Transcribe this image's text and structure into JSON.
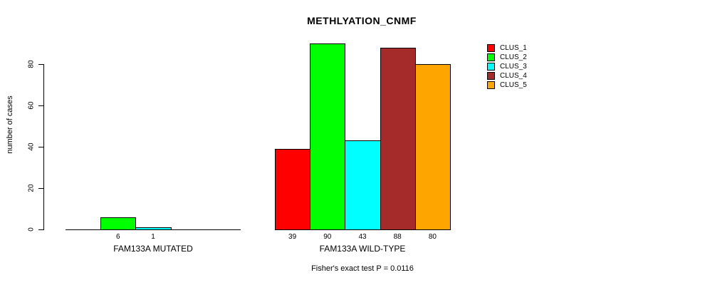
{
  "chart_data": {
    "type": "bar",
    "title": "METHLYATION_CNMF",
    "ylabel": "number of cases",
    "ylim": [
      0,
      90
    ],
    "yticks": [
      0,
      20,
      40,
      60,
      80
    ],
    "grid": false,
    "legend_position": "right",
    "series_names": [
      "CLUS_1",
      "CLUS_2",
      "CLUS_3",
      "CLUS_4",
      "CLUS_5"
    ],
    "legend": [
      {
        "label": "CLUS_1",
        "color": "#FF0000"
      },
      {
        "label": "CLUS_2",
        "color": "#00FF00"
      },
      {
        "label": "CLUS_3",
        "color": "#00FFFF"
      },
      {
        "label": "CLUS_4",
        "color": "#A52A2A"
      },
      {
        "label": "CLUS_5",
        "color": "#FFA500"
      }
    ],
    "groups": [
      {
        "label": "FAM133A MUTATED",
        "values": [
          0,
          6,
          1,
          0,
          0
        ],
        "value_labels": [
          "",
          "6",
          "1",
          "",
          ""
        ]
      },
      {
        "label": "FAM133A WILD-TYPE",
        "values": [
          39,
          90,
          43,
          88,
          80
        ],
        "value_labels": [
          "39",
          "90",
          "43",
          "88",
          "80"
        ]
      }
    ],
    "annotation": "Fisher's exact test P = 0.0116"
  }
}
